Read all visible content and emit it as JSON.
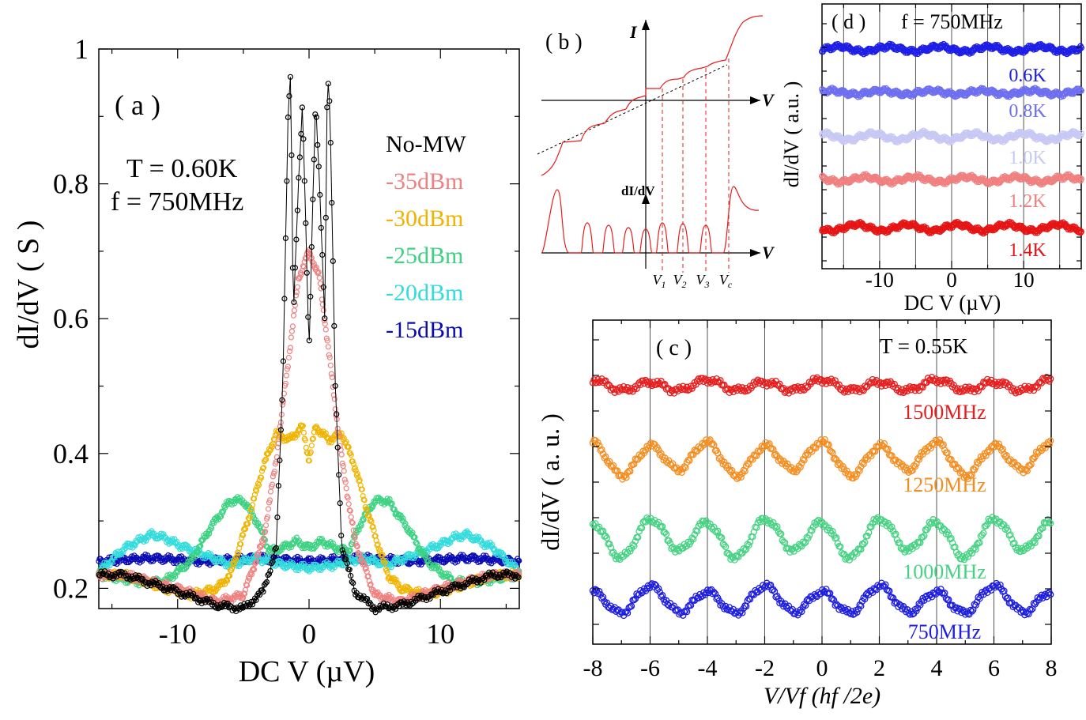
{
  "chart_data": [
    {
      "panel": "a",
      "type": "scatter",
      "label": "( a )",
      "conditions": [
        "T = 0.60K",
        "f = 750MHz"
      ],
      "xlabel": "DC V (µV)",
      "ylabel": "dI/dV ( S )",
      "xlim": [
        -16,
        16
      ],
      "ylim": [
        0.17,
        1.0
      ],
      "xticks": [
        "-10",
        "0",
        "10"
      ],
      "yticks": [
        "0.2",
        "0.4",
        "0.6",
        "0.8",
        "1"
      ],
      "series": [
        {
          "name": "No-MW",
          "color": "#000000",
          "shape": "peaks",
          "x": [
            -14,
            -10,
            -7,
            -5,
            -3.5,
            -2.5,
            -2,
            -1.6,
            -1.4,
            -1.2,
            -0.8,
            -0.5,
            -0.3,
            0,
            0.3,
            0.5,
            0.8,
            1.2,
            1.4,
            1.6,
            2,
            2.5,
            3.5,
            5,
            7,
            10,
            14
          ],
          "y": [
            0.22,
            0.195,
            0.175,
            0.17,
            0.195,
            0.26,
            0.5,
            0.9,
            0.97,
            0.6,
            0.8,
            0.92,
            0.78,
            0.55,
            0.78,
            0.92,
            0.8,
            0.6,
            0.97,
            0.9,
            0.5,
            0.26,
            0.195,
            0.17,
            0.175,
            0.195,
            0.22
          ]
        },
        {
          "name": "-35dBm",
          "color": "#f08080",
          "shape": "central peak",
          "x": [
            -14,
            -10,
            -7,
            -5,
            -3.5,
            -2.5,
            -1.5,
            -0.8,
            0,
            0.8,
            1.5,
            2.5,
            3.5,
            5,
            7,
            10,
            14
          ],
          "y": [
            0.22,
            0.2,
            0.18,
            0.19,
            0.27,
            0.39,
            0.55,
            0.66,
            0.7,
            0.66,
            0.55,
            0.39,
            0.27,
            0.19,
            0.18,
            0.2,
            0.22
          ]
        },
        {
          "name": "-30dBm",
          "color": "#f0b400",
          "shape": "shoulders",
          "x": [
            -14,
            -11,
            -9,
            -7,
            -6,
            -4.5,
            -3.5,
            -2.5,
            -1.5,
            -0.5,
            0,
            0.5,
            1.5,
            2.5,
            3.5,
            4.5,
            6,
            7,
            9,
            11,
            14
          ],
          "y": [
            0.22,
            0.2,
            0.19,
            0.2,
            0.22,
            0.31,
            0.38,
            0.43,
            0.42,
            0.44,
            0.39,
            0.44,
            0.42,
            0.43,
            0.38,
            0.31,
            0.22,
            0.2,
            0.19,
            0.2,
            0.22
          ]
        },
        {
          "name": "-25dBm",
          "color": "#3cd282",
          "shape": "side bumps",
          "x": [
            -16,
            -13,
            -11,
            -9,
            -7.5,
            -6,
            -5,
            -4,
            -3,
            -2,
            -1,
            0,
            1,
            2,
            3,
            4,
            5,
            6,
            7.5,
            9,
            11,
            13,
            16
          ],
          "y": [
            0.22,
            0.21,
            0.21,
            0.24,
            0.29,
            0.33,
            0.33,
            0.3,
            0.255,
            0.26,
            0.27,
            0.26,
            0.27,
            0.26,
            0.255,
            0.3,
            0.33,
            0.33,
            0.29,
            0.24,
            0.21,
            0.21,
            0.22
          ]
        },
        {
          "name": "-20dBm",
          "color": "#32dcdc",
          "shape": "oscillation",
          "x": [
            -16,
            -14,
            -12,
            -11,
            -10,
            -8,
            -6,
            -4,
            -2,
            0,
            2,
            4,
            6,
            8,
            10,
            11,
            12,
            14,
            16
          ],
          "y": [
            0.225,
            0.26,
            0.28,
            0.275,
            0.265,
            0.25,
            0.235,
            0.245,
            0.235,
            0.23,
            0.235,
            0.245,
            0.235,
            0.25,
            0.265,
            0.275,
            0.28,
            0.26,
            0.225
          ]
        },
        {
          "name": "-15dBm",
          "color": "#0a0ab4",
          "shape": "flat",
          "x": [
            -16,
            -12,
            -8,
            -4,
            0,
            4,
            8,
            12,
            16
          ],
          "y": [
            0.24,
            0.245,
            0.24,
            0.245,
            0.24,
            0.245,
            0.24,
            0.245,
            0.24
          ]
        }
      ]
    },
    {
      "panel": "b",
      "type": "diagram",
      "label": "( b )",
      "axes": {
        "current": "I",
        "voltage": "V",
        "derivative": "dI/dV"
      },
      "markers": [
        "V1",
        "V2",
        "V3",
        "Vc"
      ]
    },
    {
      "panel": "c",
      "type": "scatter",
      "label": "( c )",
      "conditions": [
        "T = 0.55K"
      ],
      "xlabel": "V/Vf (hf /2e)",
      "ylabel": "dI/dV ( a. u. )",
      "xlim": [
        -8,
        8
      ],
      "xticks": [
        "-8",
        "-6",
        "-4",
        "-2",
        "0",
        "2",
        "4",
        "6",
        "8"
      ],
      "gridlines_x": [
        -6,
        -4,
        -2,
        0,
        2,
        4,
        6
      ],
      "series": [
        {
          "name": "1500MHz",
          "color": "#e61e1e",
          "offset": 4,
          "amplitude": 0.1,
          "period": 2
        },
        {
          "name": "1250MHz",
          "color": "#f58c1e",
          "offset": 3,
          "amplitude": 0.3,
          "period": 2
        },
        {
          "name": "1000MHz",
          "color": "#46d282",
          "offset": 2,
          "amplitude": 0.35,
          "period": 2
        },
        {
          "name": "750MHz",
          "color": "#1e1ee1",
          "offset": 1,
          "amplitude": 0.25,
          "period": 2
        }
      ]
    },
    {
      "panel": "d",
      "type": "scatter",
      "label": "( d )",
      "conditions": [
        "f = 750MHz"
      ],
      "xlabel": "DC V (µV)",
      "ylabel": "dI/dV ( a.u. )",
      "xlim": [
        -18,
        18
      ],
      "xticks": [
        "-10",
        "0",
        "10"
      ],
      "gridlines_x": [
        -15,
        -10,
        -5,
        0,
        5,
        10,
        15
      ],
      "series": [
        {
          "name": "0.6K",
          "color": "#1e1ee6",
          "offset": 5,
          "amplitude": 0.08
        },
        {
          "name": "0.8K",
          "color": "#6e6ef0",
          "offset": 4,
          "amplitude": 0.06
        },
        {
          "name": "1.0K",
          "color": "#c8c8f5",
          "offset": 3,
          "amplitude": 0.1
        },
        {
          "name": "1.2K",
          "color": "#f08080",
          "offset": 2,
          "amplitude": 0.08
        },
        {
          "name": "1.4K",
          "color": "#e61414",
          "offset": 1,
          "amplitude": 0.1
        }
      ]
    }
  ]
}
